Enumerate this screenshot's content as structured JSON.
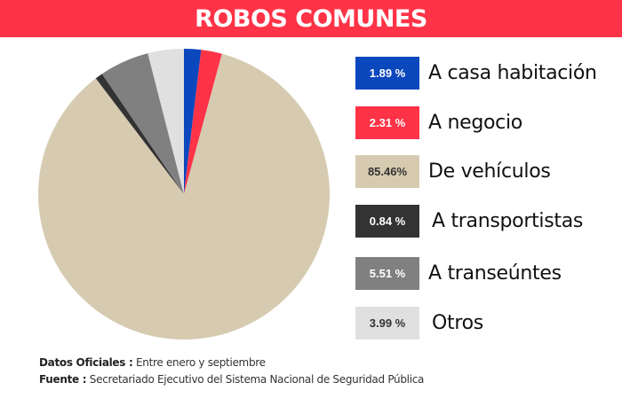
{
  "header": {
    "title": "ROBOS COMUNES"
  },
  "chart_data": {
    "type": "pie",
    "title": "ROBOS COMUNES",
    "categories": [
      "A casa habitación",
      "A negocio",
      "De vehículos",
      "A transportistas",
      "A transeúntes",
      "Otros"
    ],
    "values": [
      1.89,
      2.31,
      85.46,
      0.84,
      5.51,
      3.99
    ],
    "value_labels": [
      "1.89 %",
      "2.31 %",
      "85.46%",
      "0.84 %",
      "5.51 %",
      "3.99 %"
    ],
    "colors": [
      "#0b47bd",
      "#ff3347",
      "#d6cbb0",
      "#333333",
      "#808080",
      "#e0e0e0"
    ],
    "label_colors": [
      "#ffffff",
      "#ffffff",
      "#333333",
      "#ffffff",
      "#ffffff",
      "#333333"
    ],
    "start_angle_deg": 0,
    "direction": "clockwise",
    "legend_position": "right"
  },
  "footer": {
    "line1_label": "Datos Oficiales :",
    "line1_value": " Entre enero y septiembre",
    "line2_label": "Fuente :",
    "line2_value": " Secretariado Ejecutivo del Sistema Nacional de Seguridad Pública"
  }
}
